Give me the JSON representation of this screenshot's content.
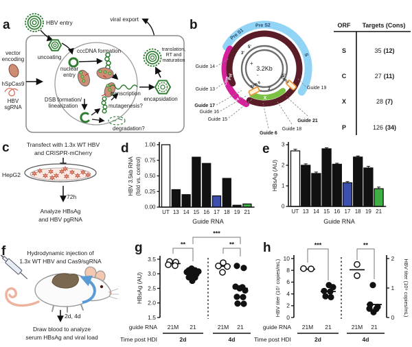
{
  "panel_a": {
    "label": "a",
    "hbv_entry": "HBV entry",
    "viral_export": "viral export",
    "uncoating": "uncoating",
    "cccdna_formation": "cccDNA formation",
    "nuclear_entry_1": "nuclear",
    "nuclear_entry_2": "entry",
    "transcription": "transcription",
    "dsb_1": "DSB formation/",
    "dsb_2": "linearization",
    "mutagenesis": "mutagenesis?",
    "degradation": "degradation?",
    "encapsidation": "encapsidation",
    "translation_1": "translation,",
    "translation_2": "RT and",
    "translation_3": "maturation",
    "vector_1": "vector",
    "vector_2": "encoding",
    "cas9": "hSpCas9",
    "sgrna_1": "HBV",
    "sgrna_2": "sgRNA"
  },
  "panel_b": {
    "label": "b",
    "genome_size": "3.2Kb",
    "ring_labels": {
      "pre_s1": "Pre S1",
      "pre_s2": "Pre S2",
      "s": "S",
      "pol": "Pol",
      "core": "Core",
      "pre_c": "Pre C",
      "x": "X",
      "enh2": "Enh II",
      "enh1": "Enh I"
    },
    "strand_labels": {
      "plus": "+",
      "minus": "-",
      "three1": "3'",
      "five1": "5'",
      "five2": "5'",
      "three2": "3'"
    },
    "guides": [
      {
        "label": "Guide 14",
        "color": "#3a3a3a"
      },
      {
        "label": "Guide 13",
        "color": "#3a3a3a"
      },
      {
        "label": "Guide 17",
        "color": "#3a52c8"
      },
      {
        "label": "Guide 16",
        "color": "#3a3a3a"
      },
      {
        "label": "Guide 15",
        "color": "#3a3a3a"
      },
      {
        "label": "Guide 6",
        "color": "#9433b5"
      },
      {
        "label": "Guide 18",
        "color": "#4a4458"
      },
      {
        "label": "Guide 21",
        "color": "#3aa63a"
      },
      {
        "label": "Guide 19",
        "color": "#3a3a3a"
      }
    ],
    "table": {
      "col1": "ORF",
      "col2": "Targets (Cons)",
      "rows": [
        {
          "orf": "S",
          "targets": "35",
          "cons": "(12)"
        },
        {
          "orf": "C",
          "targets": "27",
          "cons": "(11)"
        },
        {
          "orf": "X",
          "targets": "28",
          "cons": "(7)"
        },
        {
          "orf": "P",
          "targets": "126",
          "cons": "(34)"
        }
      ]
    }
  },
  "panel_c": {
    "label": "c",
    "line1": "Transfect with 1.3x WT HBV",
    "line2": "and CRISPR-mCherry",
    "cell_line": "HepG2",
    "time": "72h",
    "analyze1": "Analyze HBsAg",
    "analyze2": "and HBV pgRNA"
  },
  "panel_f": {
    "label": "f",
    "line1": "Hydrodynamic injection of",
    "line2": "1.3x WT HBV and Cas9/sgRNA",
    "time": "2d, 4d",
    "analyze1": "Draw blood to analyze",
    "analyze2": "serum HBsAg and viral load"
  },
  "panel_d_label": "d",
  "panel_e_label": "e",
  "panel_g_label": "g",
  "panel_h_label": "h",
  "chart_data": [
    {
      "panel": "d",
      "type": "bar",
      "categories": [
        "UT",
        "13",
        "14",
        "15",
        "16",
        "17",
        "18",
        "19",
        "21"
      ],
      "values": [
        1.0,
        0.28,
        0.2,
        0.8,
        0.7,
        0.18,
        0.46,
        0.03,
        0.05
      ],
      "colors": [
        "#ffffff",
        "#111111",
        "#111111",
        "#111111",
        "#111111",
        "#3d4fae",
        "#111111",
        "#111111",
        "#3faf46"
      ],
      "ylabel_1": "HBV 3.5kb RNA",
      "ylabel_2": "(fold vs. control)",
      "xlabel": "Guide RNA",
      "ylim": [
        0,
        1.0
      ],
      "yticks": [
        0,
        0.25,
        0.5,
        0.75,
        1.0
      ]
    },
    {
      "panel": "e",
      "type": "bar",
      "categories": [
        "UT",
        "13",
        "14",
        "15",
        "16",
        "17",
        "18",
        "19",
        "21"
      ],
      "values": [
        2.7,
        2.0,
        1.6,
        2.8,
        2.05,
        1.15,
        2.4,
        1.87,
        0.86
      ],
      "errors": [
        0.08,
        0.07,
        0.07,
        0.05,
        0.05,
        0.06,
        0.05,
        0.08,
        0.08
      ],
      "colors": [
        "#ffffff",
        "#111111",
        "#111111",
        "#111111",
        "#111111",
        "#3d4fae",
        "#111111",
        "#111111",
        "#3faf46"
      ],
      "ylabel": "HBsAg (AU)",
      "xlabel": "Guide RNA",
      "ylim": [
        0,
        3
      ],
      "yticks": [
        0,
        1,
        2,
        3
      ]
    },
    {
      "panel": "g",
      "type": "scatter",
      "ylabel": "HBsAg (AU)",
      "ylim": [
        1.5,
        3.5
      ],
      "yticks": [
        1.5,
        2.0,
        2.5,
        3.0,
        3.5
      ],
      "x_axis_title": "guide RNA",
      "time_axis_title": "Time post HDI",
      "x_groups": [
        "21M",
        "21",
        "21M",
        "21"
      ],
      "time_groups": [
        "2d",
        "4d"
      ],
      "groups": [
        {
          "guide": "21M",
          "time": "2d",
          "open": true,
          "median": 3.35,
          "points": [
            [
              3.42,
              -5
            ],
            [
              3.4,
              4
            ],
            [
              3.31,
              -7
            ],
            [
              3.28,
              3
            ]
          ]
        },
        {
          "guide": "21",
          "time": "2d",
          "open": false,
          "median": 3.02,
          "points": [
            [
              3.18,
              -2
            ],
            [
              3.12,
              -6
            ],
            [
              3.12,
              3
            ],
            [
              3.06,
              -9
            ],
            [
              3.05,
              0
            ],
            [
              3.08,
              8
            ],
            [
              2.98,
              -4
            ],
            [
              2.99,
              5
            ],
            [
              2.88,
              -6
            ],
            [
              2.87,
              3
            ],
            [
              2.76,
              -1
            ]
          ]
        },
        {
          "guide": "21M",
          "time": "4d",
          "open": true,
          "median": 3.26,
          "points": [
            [
              3.38,
              0
            ],
            [
              3.27,
              -7
            ],
            [
              3.25,
              6
            ],
            [
              3.05,
              -1
            ]
          ]
        },
        {
          "guide": "21",
          "time": "4d",
          "open": false,
          "median": 2.5,
          "points": [
            [
              3.27,
              -5
            ],
            [
              3.2,
              5
            ],
            [
              2.56,
              -7
            ],
            [
              2.54,
              3
            ],
            [
              2.5,
              -1
            ],
            [
              2.43,
              7
            ],
            [
              2.21,
              -5
            ],
            [
              2.2,
              4
            ],
            [
              1.98,
              -4
            ],
            [
              1.97,
              5
            ]
          ]
        }
      ],
      "significance": [
        {
          "label": "**",
          "from": 0,
          "to": 1
        },
        {
          "label": "***",
          "from": 1,
          "to": 3
        },
        {
          "label": "**",
          "from": 2,
          "to": 3
        }
      ]
    },
    {
      "panel": "h",
      "type": "scatter",
      "ylabel_left": "HBV titer (10⁷ copies/mL)",
      "ylabel_right": "HBV titer (10⁹ copies/mL)",
      "ylim": [
        0,
        10
      ],
      "yticks": [
        0,
        2,
        4,
        6,
        8,
        10
      ],
      "ylim_right": [
        0,
        2
      ],
      "yticks_right": [
        0,
        1,
        2
      ],
      "x_axis_title": "guide RNA",
      "time_axis_title": "Time post HDI",
      "x_groups": [
        "21M",
        "21",
        "21M",
        "21"
      ],
      "time_groups": [
        "2d",
        "4d"
      ],
      "groups": [
        {
          "guide": "21M",
          "time": "2d",
          "open": true,
          "median": 8.2,
          "points": [
            [
              8.3,
              -6
            ],
            [
              8.25,
              5
            ]
          ]
        },
        {
          "guide": "21",
          "time": "2d",
          "open": false,
          "median": 4.4,
          "points": [
            [
              5.5,
              1
            ],
            [
              5.15,
              7
            ],
            [
              4.5,
              -6
            ],
            [
              4.4,
              3
            ],
            [
              3.6,
              -4
            ],
            [
              3.45,
              4
            ]
          ]
        },
        {
          "guide": "21M",
          "time": "4d",
          "open": true,
          "median": 8.1,
          "points": [
            [
              9.0,
              0
            ],
            [
              7.1,
              0
            ]
          ]
        },
        {
          "guide": "21",
          "time": "4d",
          "open": false,
          "median": 2.2,
          "points": [
            [
              5.5,
              -2
            ],
            [
              2.2,
              -6
            ],
            [
              1.8,
              5
            ],
            [
              1.5,
              -7
            ],
            [
              1.45,
              3
            ],
            [
              0.9,
              -1
            ]
          ]
        }
      ],
      "significance": [
        {
          "label": "***",
          "from": 0,
          "to": 1
        },
        {
          "label": "**",
          "from": 2,
          "to": 3
        }
      ]
    }
  ]
}
